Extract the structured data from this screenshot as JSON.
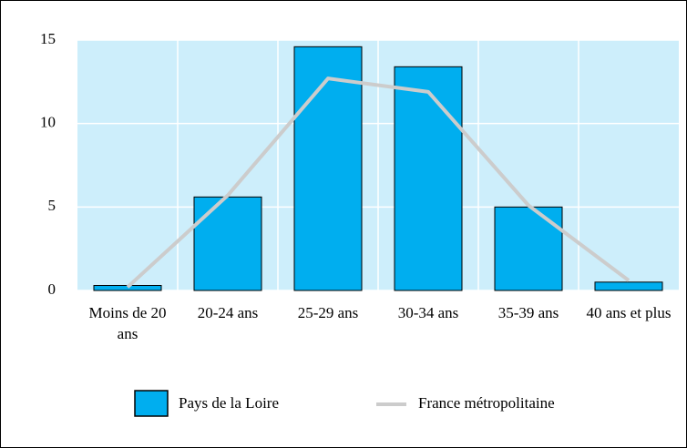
{
  "chart_data": {
    "type": "bar",
    "categories": [
      "Moins de 20 ans",
      "20-24 ans",
      "25-29 ans",
      "30-34 ans",
      "35-39 ans",
      "40 ans et plus"
    ],
    "series": [
      {
        "name": "Pays de la Loire",
        "type": "bar",
        "color": "#00aeef",
        "values": [
          0.3,
          5.6,
          14.6,
          13.4,
          5.0,
          0.5
        ]
      },
      {
        "name": "France métropolitaine",
        "type": "line",
        "color": "#cccccc",
        "values": [
          0.2,
          5.7,
          12.7,
          11.9,
          5.1,
          0.6
        ]
      }
    ],
    "ylim": [
      0,
      15
    ],
    "yticks": [
      0,
      5,
      10,
      15
    ],
    "grid": true,
    "plot_background": "#cdeefb"
  }
}
